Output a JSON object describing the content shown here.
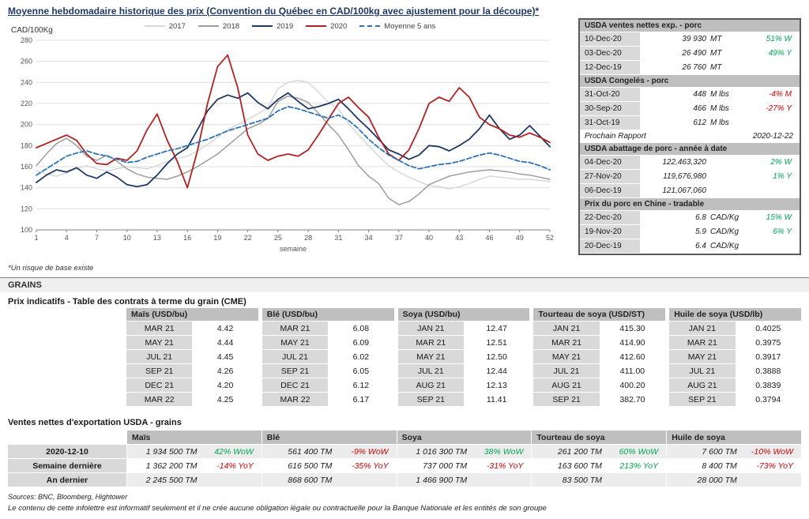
{
  "page": {
    "title": "Moyenne hebdomadaire historique des prix (Convention du Québec en CAD/100kg avec ajustement pour la découpe)*",
    "footnote": "*Un risque de base existe",
    "sources": "Sources: BNC, Bloomberg, Hightower",
    "disclaimer": "Le contenu de cette infolettre est informatif seulement et il ne crée aucune obligation légale ou contractuelle pour la Banque Nationale et les entités de son groupe"
  },
  "colors": {
    "positive": "#00a651",
    "negative": "#cc0000",
    "title_navy": "#1f3864",
    "header_bg": "#bfbfbf",
    "label_bg": "#d9d9d9"
  },
  "chart_data": {
    "type": "line",
    "title": "Moyenne hebdomadaire historique des prix (Convention du Québec en CAD/100kg avec ajustement pour la découpe)*",
    "ylabel": "CAD/100Kg",
    "xlabel": "semaine",
    "ylim": [
      100,
      280
    ],
    "ytick_step": 20,
    "x_start": 1,
    "x_end": 52,
    "xticks": [
      1,
      4,
      7,
      10,
      13,
      16,
      19,
      22,
      25,
      28,
      31,
      34,
      37,
      40,
      43,
      46,
      49,
      52
    ],
    "grid": "horizontal",
    "legend_position": "top",
    "series": [
      {
        "name": "2017",
        "color": "#d8d8d8",
        "width": 1.5,
        "values": [
          156,
          153,
          151,
          154,
          158,
          161,
          158,
          156,
          158,
          160,
          159,
          158,
          161,
          165,
          168,
          170,
          175,
          181,
          188,
          195,
          200,
          205,
          210,
          216,
          234,
          240,
          242,
          240,
          231,
          221,
          215,
          201,
          190,
          180,
          170,
          161,
          155,
          150,
          146,
          142,
          141,
          139,
          141,
          144,
          148,
          151,
          150,
          149,
          148,
          148,
          147,
          146
        ]
      },
      {
        "name": "2018",
        "color": "#9d9d9d",
        "width": 1.5,
        "values": [
          161,
          172,
          182,
          187,
          180,
          170,
          166,
          171,
          165,
          158,
          153,
          150,
          149,
          148,
          151,
          155,
          160,
          166,
          172,
          180,
          188,
          196,
          200,
          206,
          222,
          227,
          225,
          221,
          211,
          200,
          190,
          176,
          161,
          151,
          144,
          130,
          124,
          127,
          134,
          143,
          147,
          151,
          153,
          155,
          156,
          157,
          156,
          155,
          153,
          152,
          150,
          148
        ]
      },
      {
        "name": "2019",
        "color": "#1f3864",
        "width": 1.8,
        "values": [
          145,
          152,
          157,
          155,
          159,
          152,
          149,
          155,
          150,
          143,
          141,
          143,
          152,
          163,
          172,
          178,
          195,
          213,
          224,
          228,
          225,
          230,
          221,
          215,
          224,
          230,
          222,
          215,
          217,
          220,
          224,
          215,
          205,
          196,
          186,
          176,
          172,
          167,
          171,
          180,
          179,
          175,
          180,
          186,
          196,
          209,
          196,
          186,
          190,
          199,
          189,
          179
        ]
      },
      {
        "name": "2020",
        "color": "#b22222",
        "width": 1.8,
        "values": [
          178,
          182,
          186,
          190,
          185,
          172,
          163,
          162,
          168,
          166,
          175,
          195,
          210,
          185,
          165,
          140,
          175,
          220,
          255,
          266,
          235,
          190,
          172,
          166,
          170,
          172,
          170,
          176,
          190,
          205,
          220,
          226,
          216,
          207,
          188,
          172,
          166,
          176,
          196,
          220,
          226,
          222,
          235,
          226,
          207,
          200,
          196,
          190,
          188,
          192,
          188,
          183
        ]
      },
      {
        "name": "Moyenne 5 ans",
        "color": "#2e74b5",
        "width": 1.8,
        "dash": "6,3",
        "values": [
          152,
          158,
          164,
          170,
          173,
          175,
          172,
          170,
          167,
          164,
          165,
          169,
          172,
          175,
          177,
          180,
          183,
          186,
          190,
          194,
          197,
          200,
          203,
          206,
          213,
          217,
          215,
          212,
          209,
          206,
          209,
          204,
          196,
          186,
          178,
          171,
          166,
          161,
          158,
          160,
          162,
          163,
          165,
          168,
          171,
          173,
          171,
          168,
          165,
          164,
          161,
          157
        ]
      }
    ]
  },
  "hog_panel": {
    "sections": [
      {
        "title": "USDA ventes nettes exp. - porc",
        "rows": [
          {
            "date": "10-Dec-20",
            "value": "39 930",
            "unit": "MT",
            "change": "51% W"
          },
          {
            "date": "03-Dec-20",
            "value": "26 490",
            "unit": "MT",
            "change": "49% Y"
          },
          {
            "date": "12-Dec-19",
            "value": "26 760",
            "unit": "MT",
            "change": ""
          }
        ]
      },
      {
        "title": "USDA Congelés - porc",
        "rows": [
          {
            "date": "31-Oct-20",
            "value": "448",
            "unit": "M lbs",
            "change": "-4% M"
          },
          {
            "date": "30-Sep-20",
            "value": "466",
            "unit": "M lbs",
            "change": "-27% Y"
          },
          {
            "date": "31-Oct-19",
            "value": "612",
            "unit": "M lbs",
            "change": ""
          }
        ]
      },
      {
        "label": "Prochain Rapport",
        "value": "2020-12-22"
      },
      {
        "title": "USDA abattage de porc - année à date",
        "rows": [
          {
            "date": "04-Dec-20",
            "value": "122,463,320",
            "unit": "",
            "change": "2% W"
          },
          {
            "date": "27-Nov-20",
            "value": "119,676,980",
            "unit": "",
            "change": "1% Y"
          },
          {
            "date": "06-Dec-19",
            "value": "121,067,060",
            "unit": "",
            "change": ""
          }
        ]
      },
      {
        "title": "Prix du porc en Chine - tradable",
        "rows": [
          {
            "date": "22-Dec-20",
            "value": "6.8",
            "unit": "CAD/Kg",
            "change": "15% W"
          },
          {
            "date": "19-Nov-20",
            "value": "5.9",
            "unit": "CAD/Kg",
            "change": "6% Y"
          },
          {
            "date": "20-Dec-19",
            "value": "6.4",
            "unit": "CAD/Kg",
            "change": ""
          }
        ]
      }
    ]
  },
  "grains": {
    "section_title": "GRAINS",
    "cme_title": "Prix indicatifs - Table des contrats à terme du grain (CME)",
    "cme_groups": [
      {
        "title": "Maïs (USD/bu)",
        "rows": [
          [
            "MAR 21",
            "4.42"
          ],
          [
            "MAY 21",
            "4.44"
          ],
          [
            "JUL 21",
            "4.45"
          ],
          [
            "SEP 21",
            "4.26"
          ],
          [
            "DEC 21",
            "4.20"
          ],
          [
            "MAR 22",
            "4.25"
          ]
        ]
      },
      {
        "title": "Blé (USD/bu)",
        "rows": [
          [
            "MAR 21",
            "6.08"
          ],
          [
            "MAY 21",
            "6.09"
          ],
          [
            "JUL 21",
            "6.02"
          ],
          [
            "SEP 21",
            "6.05"
          ],
          [
            "DEC 21",
            "6.12"
          ],
          [
            "MAR 22",
            "6.17"
          ]
        ]
      },
      {
        "title": "Soya (USD/bu)",
        "rows": [
          [
            "JAN 21",
            "12.47"
          ],
          [
            "MAR 21",
            "12.51"
          ],
          [
            "MAY 21",
            "12.50"
          ],
          [
            "JUL 21",
            "12.44"
          ],
          [
            "AUG 21",
            "12.13"
          ],
          [
            "SEP 21",
            "11.41"
          ]
        ]
      },
      {
        "title": "Tourteau de soya (USD/ST)",
        "rows": [
          [
            "JAN 21",
            "415.30"
          ],
          [
            "MAR 21",
            "414.90"
          ],
          [
            "MAY 21",
            "412.60"
          ],
          [
            "JUL 21",
            "411.00"
          ],
          [
            "AUG 21",
            "400.20"
          ],
          [
            "SEP 21",
            "382.70"
          ]
        ]
      },
      {
        "title": "Huile de soya (USD/lb)",
        "rows": [
          [
            "JAN 21",
            "0.4025"
          ],
          [
            "MAR 21",
            "0.3975"
          ],
          [
            "MAY 21",
            "0.3917"
          ],
          [
            "JUL 21",
            "0.3888"
          ],
          [
            "AUG 21",
            "0.3839"
          ],
          [
            "SEP 21",
            "0.3794"
          ]
        ]
      }
    ],
    "exports_title": "Ventes nettes d'exportation USDA - grains",
    "exports": {
      "headers": [
        "Maïs",
        "Blé",
        "Soya",
        "Tourteau de soya",
        "Huile de soya"
      ],
      "rows": [
        {
          "label": "2020-12-10",
          "cells": [
            {
              "v": "1 934 500 TM",
              "c": "42% WoW"
            },
            {
              "v": "561 400 TM",
              "c": "-9% WoW"
            },
            {
              "v": "1 016 300 TM",
              "c": "38% WoW"
            },
            {
              "v": "261 200 TM",
              "c": "60% WoW"
            },
            {
              "v": "7 600 TM",
              "c": "-10% WoW"
            }
          ]
        },
        {
          "label": "Semaine dernière",
          "cells": [
            {
              "v": "1 362 200 TM",
              "c": "-14% YoY"
            },
            {
              "v": "616 500 TM",
              "c": "-35% YoY"
            },
            {
              "v": "737 000 TM",
              "c": "-31% YoY"
            },
            {
              "v": "163 600 TM",
              "c": "213% YoY"
            },
            {
              "v": "8 400 TM",
              "c": "-73% YoY"
            }
          ]
        },
        {
          "label": "An dernier",
          "cells": [
            {
              "v": "2 245 500 TM",
              "c": ""
            },
            {
              "v": "868 600 TM",
              "c": ""
            },
            {
              "v": "1 466 900 TM",
              "c": ""
            },
            {
              "v": "83 500 TM",
              "c": ""
            },
            {
              "v": "28 000 TM",
              "c": ""
            }
          ]
        }
      ]
    }
  }
}
